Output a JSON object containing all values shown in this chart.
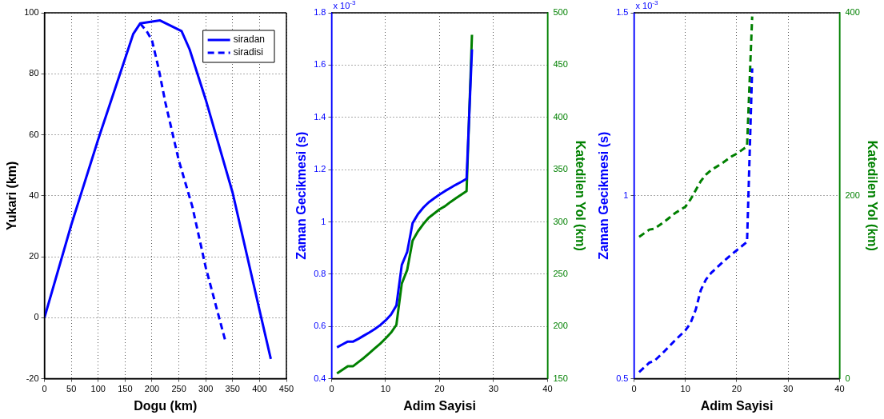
{
  "chart_data": [
    {
      "type": "line",
      "xlabel": "Dogu (km)",
      "ylabel": "Yukari (km)",
      "xlim": [
        0,
        450
      ],
      "xticks": [
        0,
        50,
        100,
        150,
        200,
        250,
        300,
        350,
        400,
        450
      ],
      "ylim": [
        -20,
        100
      ],
      "yticks": [
        -20,
        0,
        20,
        40,
        60,
        80,
        100
      ],
      "grid": true,
      "legend": "top right",
      "series": [
        {
          "name": "siradan",
          "color": "#0000ff",
          "line_style": "solid",
          "x": [
            0,
            50,
            100,
            150,
            165,
            178,
            215,
            255,
            270,
            300,
            350,
            400,
            421
          ],
          "values": [
            0,
            30.5,
            58.5,
            85,
            93,
            96.5,
            97.5,
            94,
            88,
            71.5,
            41,
            2.5,
            -13.5
          ]
        },
        {
          "name": "siradisi",
          "color": "#0000ff",
          "line_style": "dashed",
          "x": [
            178,
            190,
            200,
            212,
            225,
            250,
            275,
            300,
            337
          ],
          "values": [
            96.5,
            94,
            91,
            82,
            70.5,
            51.5,
            36.5,
            16.5,
            -8
          ]
        }
      ]
    },
    {
      "type": "line",
      "xlabel": "Adim Sayisi",
      "ylabel": "Zaman Gecikmesi (s)",
      "y2label": "Katedilen Yol (km)",
      "annotations": [
        "x 10$^{-3}$"
      ],
      "xlim": [
        0,
        40
      ],
      "xticks": [
        0,
        10,
        20,
        30,
        40
      ],
      "ylim": [
        0.4,
        1.8
      ],
      "yticks": [
        0.4,
        0.6,
        0.8,
        1,
        1.2,
        1.4,
        1.6,
        1.8
      ],
      "y2lim": [
        150,
        500
      ],
      "y2ticks": [
        150,
        200,
        250,
        300,
        350,
        400,
        450,
        500
      ],
      "grid": true,
      "x": [
        1,
        2,
        3,
        4,
        5,
        6,
        7,
        8,
        9,
        10,
        11,
        12,
        13,
        14,
        15,
        16,
        17,
        18,
        19,
        20,
        21,
        22,
        23,
        24,
        25,
        26
      ],
      "series": [
        {
          "color": "#0000ff",
          "line_style": "solid",
          "values": [
            0.52,
            0.531,
            0.542,
            0.542,
            0.553,
            0.565,
            0.577,
            0.59,
            0.605,
            0.623,
            0.645,
            0.68,
            0.835,
            0.885,
            0.995,
            1.03,
            1.055,
            1.075,
            1.09,
            1.105,
            1.118,
            1.13,
            1.142,
            1.153,
            1.165,
            1.66
          ]
        },
        {
          "color": "#008000",
          "line_style": "solid",
          "axis": "y2",
          "values": [
            155,
            158.5,
            162,
            162,
            166,
            170,
            174.5,
            179,
            183.5,
            188.5,
            194,
            201.5,
            241,
            254,
            282,
            291,
            298,
            304,
            308,
            312,
            315,
            319,
            322.5,
            326,
            329.5,
            479
          ]
        }
      ]
    },
    {
      "type": "line",
      "xlabel": "Adim Sayisi",
      "ylabel": "Zaman Gecikmesi (s)",
      "y2label": "Katedilen Yol (km)",
      "annotations": [
        "x 10$^{-3}$"
      ],
      "xlim": [
        0,
        40
      ],
      "xticks": [
        0,
        10,
        20,
        30,
        40
      ],
      "ylim": [
        0.5,
        1.5
      ],
      "yticks": [
        0.5,
        1,
        1.5
      ],
      "y2lim": [
        0,
        400
      ],
      "y2ticks": [
        0,
        200,
        400
      ],
      "grid": true,
      "x": [
        1,
        3,
        4,
        6,
        8,
        10,
        11,
        12,
        13,
        14,
        15,
        17,
        19,
        20,
        22,
        23
      ],
      "series": [
        {
          "color": "#0000ff",
          "line_style": "dashed",
          "values": [
            0.518,
            0.544,
            0.549,
            0.576,
            0.605,
            0.632,
            0.652,
            0.688,
            0.742,
            0.771,
            0.789,
            0.815,
            0.84,
            0.851,
            0.874,
            1.348
          ]
        },
        {
          "color": "#008000",
          "line_style": "dashed",
          "axis": "y2",
          "values": [
            155,
            163,
            164,
            172,
            181,
            188,
            196,
            206,
            216,
            223,
            228,
            235,
            243,
            246,
            254,
            396
          ]
        }
      ]
    }
  ]
}
